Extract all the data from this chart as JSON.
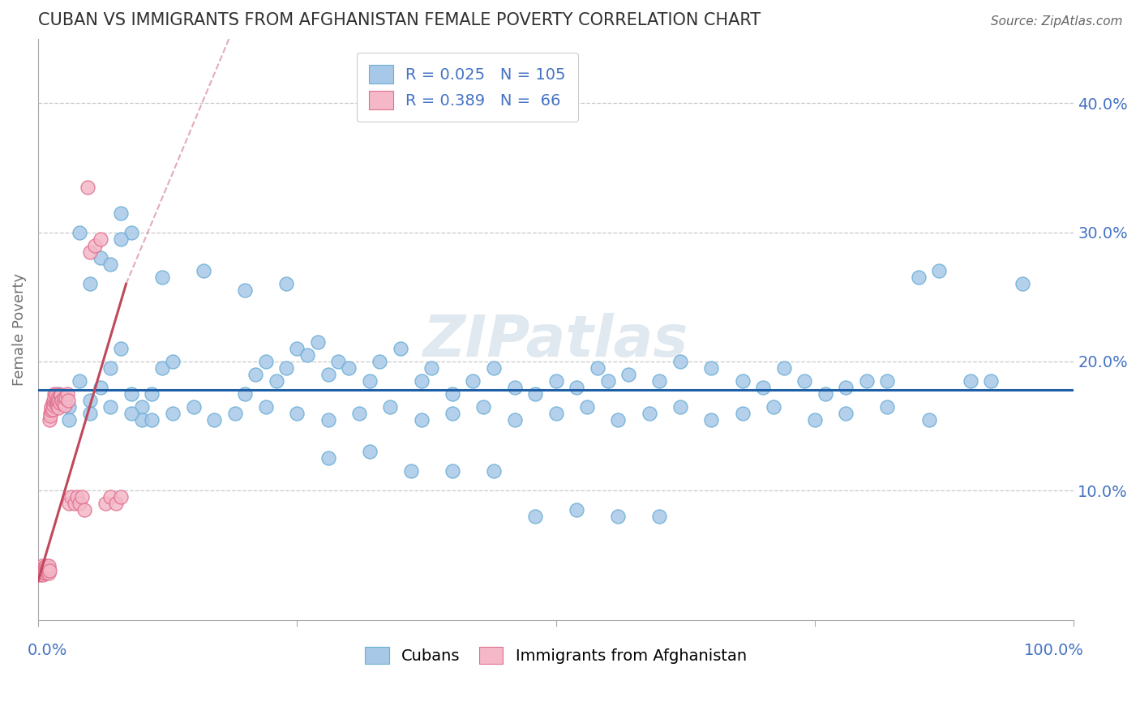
{
  "title": "CUBAN VS IMMIGRANTS FROM AFGHANISTAN FEMALE POVERTY CORRELATION CHART",
  "source": "Source: ZipAtlas.com",
  "ylabel": "Female Poverty",
  "xlim": [
    0.0,
    1.0
  ],
  "ylim": [
    0.0,
    0.45
  ],
  "legend_r1": "R = 0.025",
  "legend_n1": "N = 105",
  "legend_r2": "R = 0.389",
  "legend_n2": "N =  66",
  "blue_color": "#a8c8e8",
  "blue_edge_color": "#6baed6",
  "pink_color": "#f4b8c8",
  "pink_edge_color": "#e07090",
  "blue_line_color": "#1f5fa6",
  "pink_line_color": "#c0485a",
  "grid_color": "#c8c8c8",
  "title_color": "#303030",
  "axis_label_color": "#4472c4",
  "ylabel_color": "#707070",
  "watermark_color": "#e0e8f0",
  "cubans_x": [
    0.02,
    0.03,
    0.04,
    0.05,
    0.06,
    0.07,
    0.08,
    0.09,
    0.1,
    0.11,
    0.12,
    0.13,
    0.05,
    0.06,
    0.07,
    0.08,
    0.09,
    0.1,
    0.2,
    0.21,
    0.22,
    0.23,
    0.24,
    0.25,
    0.26,
    0.27,
    0.28,
    0.29,
    0.3,
    0.32,
    0.33,
    0.35,
    0.37,
    0.38,
    0.4,
    0.42,
    0.44,
    0.46,
    0.48,
    0.5,
    0.52,
    0.54,
    0.55,
    0.57,
    0.6,
    0.62,
    0.65,
    0.68,
    0.7,
    0.72,
    0.74,
    0.76,
    0.78,
    0.8,
    0.82,
    0.85,
    0.87,
    0.9,
    0.92,
    0.95,
    0.03,
    0.05,
    0.07,
    0.09,
    0.11,
    0.13,
    0.15,
    0.17,
    0.19,
    0.22,
    0.25,
    0.28,
    0.31,
    0.34,
    0.37,
    0.4,
    0.43,
    0.46,
    0.5,
    0.53,
    0.56,
    0.59,
    0.62,
    0.65,
    0.68,
    0.71,
    0.75,
    0.78,
    0.82,
    0.86,
    0.04,
    0.08,
    0.12,
    0.16,
    0.2,
    0.24,
    0.28,
    0.32,
    0.36,
    0.4,
    0.44,
    0.48,
    0.52,
    0.56,
    0.6
  ],
  "cubans_y": [
    0.175,
    0.165,
    0.185,
    0.17,
    0.18,
    0.195,
    0.21,
    0.175,
    0.165,
    0.175,
    0.195,
    0.2,
    0.26,
    0.28,
    0.275,
    0.315,
    0.3,
    0.155,
    0.175,
    0.19,
    0.2,
    0.185,
    0.195,
    0.21,
    0.205,
    0.215,
    0.19,
    0.2,
    0.195,
    0.185,
    0.2,
    0.21,
    0.185,
    0.195,
    0.175,
    0.185,
    0.195,
    0.18,
    0.175,
    0.185,
    0.18,
    0.195,
    0.185,
    0.19,
    0.185,
    0.2,
    0.195,
    0.185,
    0.18,
    0.195,
    0.185,
    0.175,
    0.18,
    0.185,
    0.185,
    0.265,
    0.27,
    0.185,
    0.185,
    0.26,
    0.155,
    0.16,
    0.165,
    0.16,
    0.155,
    0.16,
    0.165,
    0.155,
    0.16,
    0.165,
    0.16,
    0.155,
    0.16,
    0.165,
    0.155,
    0.16,
    0.165,
    0.155,
    0.16,
    0.165,
    0.155,
    0.16,
    0.165,
    0.155,
    0.16,
    0.165,
    0.155,
    0.16,
    0.165,
    0.155,
    0.3,
    0.295,
    0.265,
    0.27,
    0.255,
    0.26,
    0.125,
    0.13,
    0.115,
    0.115,
    0.115,
    0.08,
    0.085,
    0.08,
    0.08
  ],
  "afghan_x": [
    0.002,
    0.003,
    0.003,
    0.004,
    0.004,
    0.005,
    0.005,
    0.005,
    0.006,
    0.006,
    0.006,
    0.007,
    0.007,
    0.007,
    0.008,
    0.008,
    0.009,
    0.009,
    0.01,
    0.01,
    0.01,
    0.011,
    0.011,
    0.012,
    0.012,
    0.013,
    0.013,
    0.014,
    0.014,
    0.015,
    0.015,
    0.016,
    0.016,
    0.017,
    0.017,
    0.018,
    0.018,
    0.019,
    0.019,
    0.02,
    0.02,
    0.021,
    0.021,
    0.022,
    0.023,
    0.024,
    0.025,
    0.026,
    0.027,
    0.028,
    0.029,
    0.03,
    0.032,
    0.035,
    0.038,
    0.04,
    0.042,
    0.045,
    0.048,
    0.05,
    0.055,
    0.06,
    0.065,
    0.07,
    0.075,
    0.08
  ],
  "afghan_y": [
    0.035,
    0.04,
    0.038,
    0.042,
    0.036,
    0.035,
    0.04,
    0.038,
    0.036,
    0.04,
    0.037,
    0.039,
    0.041,
    0.038,
    0.04,
    0.042,
    0.038,
    0.04,
    0.036,
    0.04,
    0.042,
    0.038,
    0.155,
    0.16,
    0.158,
    0.162,
    0.165,
    0.168,
    0.163,
    0.166,
    0.17,
    0.175,
    0.172,
    0.168,
    0.174,
    0.17,
    0.166,
    0.172,
    0.168,
    0.164,
    0.17,
    0.174,
    0.168,
    0.174,
    0.17,
    0.168,
    0.172,
    0.166,
    0.172,
    0.175,
    0.17,
    0.09,
    0.095,
    0.09,
    0.095,
    0.09,
    0.095,
    0.085,
    0.335,
    0.285,
    0.29,
    0.295,
    0.09,
    0.095,
    0.09,
    0.095
  ],
  "pink_line_x_solid_start": 0.0,
  "pink_line_x_solid_end": 0.085,
  "pink_line_x_dashed_end": 0.42,
  "pink_line_y_at_0": 0.03,
  "pink_line_y_at_solid_end": 0.26,
  "pink_line_y_at_dashed_end": 0.9,
  "blue_line_y": 0.178
}
